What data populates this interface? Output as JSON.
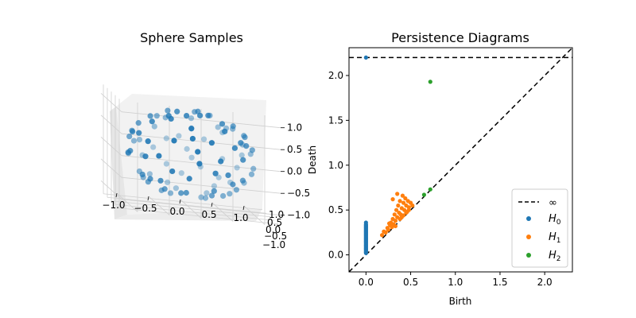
{
  "chart_data": [
    {
      "type": "scatter",
      "title": "Sphere Samples",
      "projection": "3d",
      "xlim": [
        -1.0,
        1.0
      ],
      "ylim": [
        -1.0,
        1.0
      ],
      "zlim": [
        -1.0,
        1.0
      ],
      "x_ticks": [
        "−1.0",
        "−0.5",
        "0.0",
        "0.5",
        "1.0"
      ],
      "y_ticks": [
        "−1.0",
        "−0.5",
        "0.0",
        "0.5",
        "1.0"
      ],
      "z_ticks": [
        "−1.0",
        "−0.5",
        "0.0",
        "0.5",
        "1.0"
      ],
      "grid": true,
      "color": "#1f77b4",
      "n_points": 100,
      "points": [
        [
          0.62,
          0.31,
          0.72
        ],
        [
          -0.48,
          0.77,
          0.42
        ],
        [
          -0.91,
          -0.12,
          0.39
        ],
        [
          0.15,
          -0.96,
          0.22
        ],
        [
          0.84,
          -0.44,
          0.31
        ],
        [
          -0.27,
          -0.61,
          0.74
        ],
        [
          0.33,
          0.88,
          -0.34
        ],
        [
          -0.71,
          0.52,
          -0.47
        ],
        [
          0.05,
          0.08,
          0.99
        ],
        [
          0.41,
          -0.35,
          -0.84
        ],
        [
          -0.59,
          -0.38,
          -0.71
        ],
        [
          0.93,
          0.21,
          -0.29
        ],
        [
          -0.18,
          0.95,
          0.25
        ],
        [
          0.72,
          0.66,
          0.19
        ],
        [
          -0.86,
          0.43,
          0.28
        ],
        [
          0.21,
          -0.52,
          0.83
        ],
        [
          -0.39,
          -0.89,
          -0.24
        ],
        [
          0.57,
          -0.79,
          -0.21
        ],
        [
          -0.95,
          -0.28,
          -0.14
        ],
        [
          0.11,
          0.42,
          -0.9
        ],
        [
          0.68,
          -0.12,
          0.72
        ],
        [
          -0.55,
          0.13,
          0.82
        ],
        [
          0.88,
          -0.47,
          -0.08
        ],
        [
          -0.12,
          -0.27,
          -0.95
        ],
        [
          0.36,
          0.54,
          0.76
        ],
        [
          -0.74,
          -0.61,
          0.28
        ],
        [
          0.03,
          0.99,
          -0.12
        ],
        [
          -0.31,
          0.62,
          -0.72
        ],
        [
          0.79,
          0.38,
          -0.48
        ],
        [
          -0.66,
          -0.08,
          -0.74
        ],
        [
          0.25,
          -0.91,
          -0.33
        ],
        [
          -0.83,
          0.55,
          -0.05
        ],
        [
          0.49,
          0.14,
          -0.86
        ],
        [
          -0.22,
          -0.72,
          0.66
        ],
        [
          0.97,
          -0.03,
          0.23
        ],
        [
          -0.44,
          0.34,
          0.83
        ],
        [
          0.14,
          -0.23,
          0.96
        ],
        [
          -0.08,
          0.71,
          0.7
        ],
        [
          0.61,
          -0.61,
          0.51
        ],
        [
          -0.99,
          0.07,
          -0.11
        ],
        [
          0.38,
          0.92,
          0.1
        ],
        [
          -0.62,
          -0.74,
          -0.26
        ],
        [
          0.82,
          0.11,
          0.56
        ],
        [
          -0.35,
          -0.11,
          0.93
        ],
        [
          0.07,
          -0.74,
          -0.67
        ],
        [
          -0.77,
          0.18,
          -0.61
        ],
        [
          0.53,
          0.72,
          -0.45
        ],
        [
          -0.14,
          -0.98,
          0.13
        ],
        [
          0.91,
          -0.31,
          0.27
        ],
        [
          -0.49,
          0.86,
          -0.15
        ],
        [
          0.28,
          0.15,
          0.95
        ],
        [
          -0.87,
          -0.37,
          0.33
        ],
        [
          0.66,
          -0.58,
          -0.48
        ],
        [
          -0.05,
          0.45,
          0.89
        ],
        [
          0.44,
          -0.88,
          0.18
        ],
        [
          -0.68,
          0.71,
          0.18
        ],
        [
          0.17,
          0.63,
          -0.76
        ],
        [
          -0.41,
          -0.52,
          -0.75
        ],
        [
          0.75,
          0.52,
          0.41
        ],
        [
          -0.93,
          0.29,
          0.22
        ],
        [
          0.32,
          -0.38,
          0.87
        ],
        [
          -0.26,
          0.91,
          -0.32
        ],
        [
          0.58,
          0.24,
          -0.78
        ],
        [
          -0.57,
          -0.82,
          0.08
        ],
        [
          0.89,
          0.41,
          0.2
        ],
        [
          -0.16,
          -0.45,
          0.88
        ],
        [
          0.48,
          -0.73,
          -0.49
        ],
        [
          -0.8,
          -0.18,
          0.57
        ],
        [
          0.1,
          0.86,
          0.5
        ],
        [
          -0.35,
          0.25,
          -0.9
        ],
        [
          0.7,
          -0.31,
          -0.64
        ],
        [
          -0.63,
          0.47,
          0.62
        ],
        [
          0.23,
          -0.97,
          -0.07
        ],
        [
          -0.9,
          -0.42,
          -0.12
        ],
        [
          0.42,
          0.62,
          0.66
        ],
        [
          -0.19,
          -0.81,
          -0.55
        ],
        [
          0.84,
          -0.18,
          -0.51
        ],
        [
          -0.47,
          0.08,
          -0.88
        ],
        [
          0.01,
          -0.62,
          0.78
        ],
        [
          0.63,
          0.77,
          -0.09
        ],
        [
          -0.72,
          -0.32,
          -0.62
        ],
        [
          0.35,
          -0.15,
          -0.92
        ],
        [
          -0.11,
          0.99,
          0.07
        ],
        [
          0.77,
          -0.62,
          0.15
        ],
        [
          -0.53,
          -0.63,
          0.57
        ],
        [
          0.19,
          0.33,
          -0.92
        ],
        [
          -0.84,
          0.26,
          -0.47
        ],
        [
          0.55,
          -0.45,
          0.7
        ],
        [
          -0.29,
          0.81,
          0.51
        ],
        [
          0.95,
          0.27,
          -0.15
        ],
        [
          -0.6,
          -0.29,
          0.74
        ],
        [
          0.12,
          -0.88,
          0.46
        ],
        [
          -0.38,
          -0.24,
          -0.89
        ],
        [
          0.71,
          0.06,
          -0.7
        ],
        [
          -0.96,
          -0.05,
          0.26
        ],
        [
          0.27,
          0.78,
          -0.56
        ],
        [
          -0.45,
          0.66,
          -0.6
        ],
        [
          0.86,
          -0.08,
          0.5
        ],
        [
          -0.03,
          -0.33,
          -0.94
        ],
        [
          0.5,
          0.45,
          0.74
        ]
      ]
    },
    {
      "type": "scatter",
      "title": "Persistence Diagrams",
      "xlabel": "Birth",
      "ylabel": "Death",
      "xlim": [
        -0.19,
        2.31
      ],
      "ylim": [
        -0.19,
        2.31
      ],
      "x_ticks": [
        0.0,
        0.5,
        1.0,
        1.5,
        2.0
      ],
      "y_ticks": [
        0.0,
        0.5,
        1.0,
        1.5,
        2.0
      ],
      "x_tick_labels": [
        "0.0",
        "0.5",
        "1.0",
        "1.5",
        "2.0"
      ],
      "y_tick_labels": [
        "0.0",
        "0.5",
        "1.0",
        "1.5",
        "2.0"
      ],
      "infinity_value": 2.2,
      "legend_position": "lower-right",
      "legend": [
        {
          "key": "inf",
          "label": "∞",
          "style": "dashed-line",
          "color": "#000000"
        },
        {
          "key": "H0",
          "label_main": "H",
          "label_sub": "0",
          "color": "#1f77b4"
        },
        {
          "key": "H1",
          "label_main": "H",
          "label_sub": "1",
          "color": "#ff7f0e"
        },
        {
          "key": "H2",
          "label_main": "H",
          "label_sub": "2",
          "color": "#2ca02c"
        }
      ],
      "series": [
        {
          "name": "H0",
          "color": "#1f77b4",
          "points": [
            [
              0,
              0.02
            ],
            [
              0,
              0.03
            ],
            [
              0,
              0.04
            ],
            [
              0,
              0.05
            ],
            [
              0,
              0.06
            ],
            [
              0,
              0.07
            ],
            [
              0,
              0.08
            ],
            [
              0,
              0.09
            ],
            [
              0,
              0.1
            ],
            [
              0,
              0.11
            ],
            [
              0,
              0.12
            ],
            [
              0,
              0.13
            ],
            [
              0,
              0.14
            ],
            [
              0,
              0.15
            ],
            [
              0,
              0.16
            ],
            [
              0,
              0.17
            ],
            [
              0,
              0.18
            ],
            [
              0,
              0.19
            ],
            [
              0,
              0.2
            ],
            [
              0,
              0.21
            ],
            [
              0,
              0.22
            ],
            [
              0,
              0.23
            ],
            [
              0,
              0.24
            ],
            [
              0,
              0.25
            ],
            [
              0,
              0.26
            ],
            [
              0,
              0.27
            ],
            [
              0,
              0.28
            ],
            [
              0,
              0.29
            ],
            [
              0,
              0.3
            ],
            [
              0,
              0.31
            ],
            [
              0,
              0.32
            ],
            [
              0,
              0.33
            ],
            [
              0,
              0.34
            ],
            [
              0,
              0.36
            ],
            [
              0,
              2.2
            ]
          ]
        },
        {
          "name": "H1",
          "color": "#ff7f0e",
          "points": [
            [
              0.18,
              0.22
            ],
            [
              0.2,
              0.26
            ],
            [
              0.22,
              0.25
            ],
            [
              0.24,
              0.3
            ],
            [
              0.25,
              0.28
            ],
            [
              0.27,
              0.33
            ],
            [
              0.28,
              0.36
            ],
            [
              0.29,
              0.31
            ],
            [
              0.3,
              0.4
            ],
            [
              0.31,
              0.34
            ],
            [
              0.32,
              0.45
            ],
            [
              0.33,
              0.38
            ],
            [
              0.34,
              0.5
            ],
            [
              0.35,
              0.42
            ],
            [
              0.36,
              0.55
            ],
            [
              0.37,
              0.47
            ],
            [
              0.38,
              0.6
            ],
            [
              0.39,
              0.45
            ],
            [
              0.4,
              0.52
            ],
            [
              0.41,
              0.66
            ],
            [
              0.42,
              0.58
            ],
            [
              0.43,
              0.5
            ],
            [
              0.44,
              0.63
            ],
            [
              0.45,
              0.55
            ],
            [
              0.46,
              0.48
            ],
            [
              0.47,
              0.6
            ],
            [
              0.48,
              0.53
            ],
            [
              0.5,
              0.58
            ],
            [
              0.52,
              0.55
            ],
            [
              0.35,
              0.68
            ],
            [
              0.3,
              0.62
            ],
            [
              0.33,
              0.32
            ],
            [
              0.38,
              0.4
            ],
            [
              0.42,
              0.44
            ],
            [
              0.45,
              0.47
            ],
            [
              0.26,
              0.35
            ],
            [
              0.48,
              0.5
            ],
            [
              0.4,
              0.42
            ]
          ]
        },
        {
          "name": "H2",
          "color": "#2ca02c",
          "points": [
            [
              0.72,
              1.93
            ],
            [
              0.65,
              0.67
            ],
            [
              0.72,
              0.73
            ]
          ]
        }
      ]
    }
  ]
}
